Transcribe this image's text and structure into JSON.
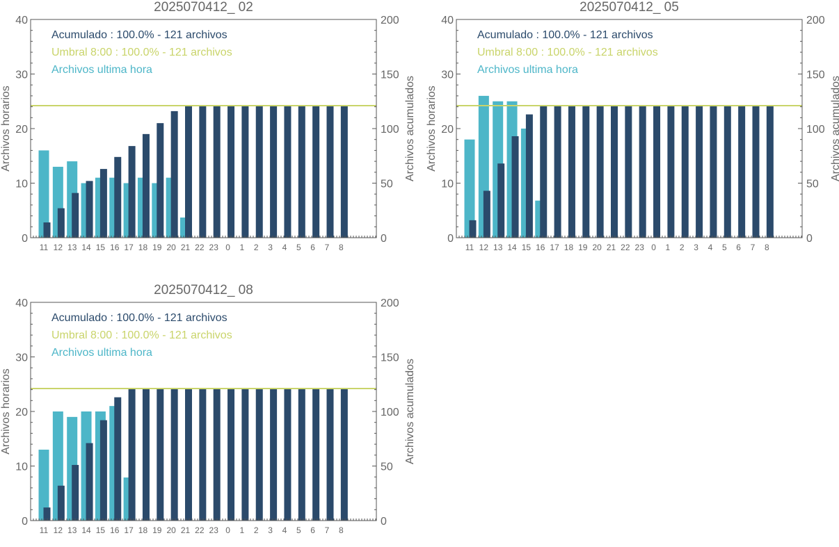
{
  "colors": {
    "hourly": "#4db6c8",
    "cumulative": "#2b4a6b",
    "threshold": "#c9d46a",
    "axis": "#555555",
    "text": "#666666"
  },
  "chart_data": [
    {
      "type": "bar",
      "title": "2025070412_ 02",
      "ylabel": "Archivos horarios",
      "y2label": "Archivos acumulados",
      "ylim": [
        0,
        40
      ],
      "y2lim": [
        0,
        200
      ],
      "yticks": [
        0,
        10,
        20,
        30,
        40
      ],
      "y2ticks": [
        0,
        50,
        100,
        150,
        200
      ],
      "categories": [
        "11",
        "12",
        "13",
        "14",
        "15",
        "16",
        "17",
        "18",
        "19",
        "20",
        "21",
        "22",
        "23",
        "0",
        "1",
        "2",
        "3",
        "4",
        "5",
        "6",
        "7",
        "8"
      ],
      "legend": [
        "Acumulado : 100.0% - 121 archivos",
        "Umbral 8:00 : 100.0% - 121 archivos",
        "Archivos ultima hora"
      ],
      "threshold": 121,
      "series": [
        {
          "name": "Archivos ultima hora",
          "axis": "left",
          "values": [
            16,
            13,
            14,
            10,
            11,
            11,
            10,
            11,
            10,
            11,
            3.7,
            0,
            0,
            0,
            0,
            0,
            0,
            0,
            0,
            0,
            0,
            0
          ]
        },
        {
          "name": "Acumulado",
          "axis": "right",
          "values": [
            14,
            27,
            41,
            52,
            63,
            74,
            84,
            95,
            105,
            116,
            121,
            121,
            121,
            121,
            121,
            121,
            121,
            121,
            121,
            121,
            121,
            121
          ]
        }
      ]
    },
    {
      "type": "bar",
      "title": "2025070412_ 05",
      "ylabel": "Archivos horarios",
      "y2label": "Archivos acumulados",
      "ylim": [
        0,
        40
      ],
      "y2lim": [
        0,
        200
      ],
      "yticks": [
        0,
        10,
        20,
        30,
        40
      ],
      "y2ticks": [
        0,
        50,
        100,
        150,
        200
      ],
      "categories": [
        "11",
        "12",
        "13",
        "14",
        "15",
        "16",
        "17",
        "18",
        "19",
        "20",
        "21",
        "22",
        "23",
        "0",
        "1",
        "2",
        "3",
        "4",
        "5",
        "6",
        "7",
        "8"
      ],
      "legend": [
        "Acumulado : 100.0% - 121 archivos",
        "Umbral 8:00 : 100.0% - 121 archivos",
        "Archivos ultima hora"
      ],
      "threshold": 121,
      "series": [
        {
          "name": "Archivos ultima hora",
          "axis": "left",
          "values": [
            18,
            26,
            25,
            25,
            20,
            6.8,
            0,
            0,
            0,
            0,
            0,
            0,
            0,
            0,
            0,
            0,
            0,
            0,
            0,
            0,
            0,
            0
          ]
        },
        {
          "name": "Acumulado",
          "axis": "right",
          "values": [
            16,
            43,
            68,
            93,
            113,
            121,
            121,
            121,
            121,
            121,
            121,
            121,
            121,
            121,
            121,
            121,
            121,
            121,
            121,
            121,
            121,
            121
          ]
        }
      ]
    },
    {
      "type": "bar",
      "title": "2025070412_ 08",
      "ylabel": "Archivos horarios",
      "y2label": "Archivos acumulados",
      "ylim": [
        0,
        40
      ],
      "y2lim": [
        0,
        200
      ],
      "yticks": [
        0,
        10,
        20,
        30,
        40
      ],
      "y2ticks": [
        0,
        50,
        100,
        150,
        200
      ],
      "categories": [
        "11",
        "12",
        "13",
        "14",
        "15",
        "16",
        "17",
        "18",
        "19",
        "20",
        "21",
        "22",
        "23",
        "0",
        "1",
        "2",
        "3",
        "4",
        "5",
        "6",
        "7",
        "8"
      ],
      "legend": [
        "Acumulado : 100.0% - 121 archivos",
        "Umbral 8:00 : 100.0% - 121 archivos",
        "Archivos ultima hora"
      ],
      "threshold": 121,
      "series": [
        {
          "name": "Archivos ultima hora",
          "axis": "left",
          "values": [
            13,
            20,
            19,
            20,
            20,
            21,
            7.9,
            0,
            0,
            0,
            0,
            0,
            0,
            0,
            0,
            0,
            0,
            0,
            0,
            0,
            0,
            0
          ]
        },
        {
          "name": "Acumulado",
          "axis": "right",
          "values": [
            12,
            32,
            51,
            71,
            92,
            113,
            121,
            121,
            121,
            121,
            121,
            121,
            121,
            121,
            121,
            121,
            121,
            121,
            121,
            121,
            121,
            121
          ]
        }
      ]
    }
  ]
}
